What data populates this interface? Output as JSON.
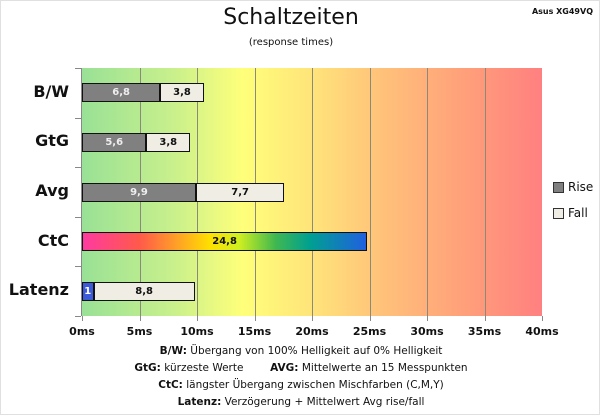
{
  "chart_data": {
    "type": "bar",
    "stacked": true,
    "orientation": "horizontal",
    "title": "Schaltzeiten",
    "subtitle": "(response times)",
    "model": "Asus XG49VQ",
    "categories": [
      "B/W",
      "GtG",
      "Avg",
      "CtC",
      "Latenz"
    ],
    "series": [
      {
        "name": "Rise",
        "color": "#808080",
        "values": [
          6.8,
          5.6,
          9.9,
          null,
          null
        ]
      },
      {
        "name": "Fall",
        "color": "#efede4",
        "values": [
          3.8,
          3.8,
          7.7,
          null,
          8.8
        ]
      },
      {
        "name": "CtC",
        "values": [
          null,
          null,
          null,
          24.8,
          null
        ]
      },
      {
        "name": "Latenz delay",
        "color": "#3d5bd9",
        "values": [
          null,
          null,
          null,
          null,
          1
        ]
      }
    ],
    "value_labels": [
      [
        "6,8",
        "3,8"
      ],
      [
        "5,6",
        "3,8"
      ],
      [
        "9,9",
        "7,7"
      ],
      [
        "24,8"
      ],
      [
        "1",
        "8,8"
      ]
    ],
    "xlim": [
      0,
      40
    ],
    "xticks": [
      "0ms",
      "5ms",
      "10ms",
      "15ms",
      "20ms",
      "25ms",
      "30ms",
      "35ms",
      "40ms"
    ],
    "grid": true,
    "legend": {
      "placement": "right",
      "entries": [
        "Rise",
        "Fall"
      ]
    }
  },
  "notes": [
    {
      "label": "B/W:",
      "text": " Übergang von 100% Helligkeit auf 0% Helligkeit"
    },
    {
      "label": "GtG:",
      "text": " kürzeste Werte",
      "label2": "AVG:",
      "text2": " Mittelwerte an 15 Messpunkten"
    },
    {
      "label": "CtC:",
      "text": " längster Übergang zwischen Mischfarben (C,M,Y)"
    },
    {
      "label": "Latenz:",
      "text": " Verzögerung + Mittelwert Avg rise/fall"
    }
  ]
}
